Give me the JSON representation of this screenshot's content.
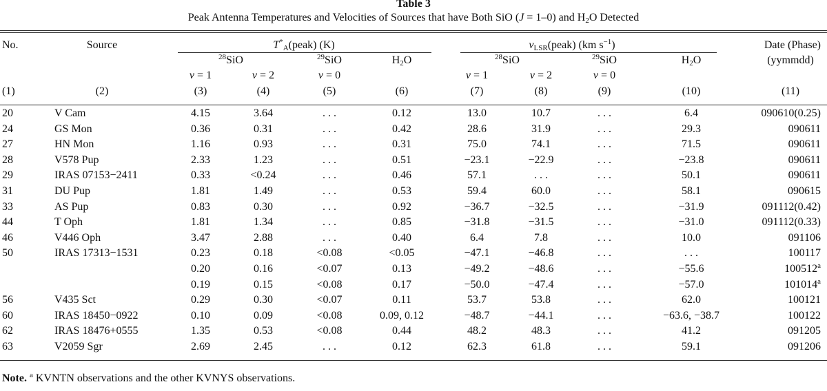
{
  "title": "Table 3",
  "subtitle": "Peak Antenna Temperatures and Velocities of Sources that have Both SiO (J = 1–0) and H2O Detected",
  "headers": {
    "no": "No.",
    "source": "Source",
    "ta_group": "T*A(peak) (K)",
    "vlsr_group": "vLSR(peak) (km s−1)",
    "date": "Date (Phase)",
    "date_fmt": "(yymmdd)",
    "sio28": "28SiO",
    "sio29": "29SiO",
    "h2o": "H2O",
    "v1": "v = 1",
    "v2": "v = 2",
    "v0": "v = 0",
    "colnums": [
      "(1)",
      "(2)",
      "(3)",
      "(4)",
      "(5)",
      "(6)",
      "(7)",
      "(8)",
      "(9)",
      "(10)",
      "(11)"
    ]
  },
  "rows": [
    [
      "20",
      "V Cam",
      "4.15",
      "3.64",
      "...",
      "0.12",
      "13.0",
      "10.7",
      "...",
      "6.4",
      "090610(0.25)"
    ],
    [
      "24",
      "GS Mon",
      "0.36",
      "0.31",
      "...",
      "0.42",
      "28.6",
      "31.9",
      "...",
      "29.3",
      "090611"
    ],
    [
      "27",
      "HN Mon",
      "1.16",
      "0.93",
      "...",
      "0.31",
      "75.0",
      "74.1",
      "...",
      "71.5",
      "090611"
    ],
    [
      "28",
      "V578 Pup",
      "2.33",
      "1.23",
      "...",
      "0.51",
      "−23.1",
      "−22.9",
      "...",
      "−23.8",
      "090611"
    ],
    [
      "29",
      "IRAS 07153−2411",
      "0.33",
      "<0.24",
      "...",
      "0.46",
      "57.1",
      "...",
      "...",
      "50.1",
      "090611"
    ],
    [
      "31",
      "DU Pup",
      "1.81",
      "1.49",
      "...",
      "0.53",
      "59.4",
      "60.0",
      "...",
      "58.1",
      "090615"
    ],
    [
      "33",
      "AS Pup",
      "0.83",
      "0.30",
      "...",
      "0.92",
      "−36.7",
      "−32.5",
      "...",
      "−31.9",
      "091112(0.42)"
    ],
    [
      "44",
      "T Oph",
      "1.81",
      "1.34",
      "...",
      "0.85",
      "−31.8",
      "−31.5",
      "...",
      "−31.0",
      "091112(0.33)"
    ],
    [
      "46",
      "V446 Oph",
      "3.47",
      "2.88",
      "...",
      "0.40",
      "6.4",
      "7.8",
      "...",
      "10.0",
      "091106"
    ],
    [
      "50",
      "IRAS 17313−1531",
      "0.23",
      "0.18",
      "<0.08",
      "<0.05",
      "−47.1",
      "−46.8",
      "...",
      "...",
      "100117"
    ],
    [
      "",
      "",
      "0.20",
      "0.16",
      "<0.07",
      "0.13",
      "−49.2",
      "−48.6",
      "...",
      "−55.6",
      "100512a"
    ],
    [
      "",
      "",
      "0.19",
      "0.15",
      "<0.08",
      "0.17",
      "−50.0",
      "−47.4",
      "...",
      "−57.0",
      "101014a"
    ],
    [
      "56",
      "V435 Sct",
      "0.29",
      "0.30",
      "<0.07",
      "0.11",
      "53.7",
      "53.8",
      "...",
      "62.0",
      "100121"
    ],
    [
      "60",
      "IRAS 18450−0922",
      "0.10",
      "0.09",
      "<0.08",
      "0.09, 0.12",
      "−48.7",
      "−44.1",
      "...",
      "−63.6, −38.7",
      "100122"
    ],
    [
      "62",
      "IRAS 18476+0555",
      "1.35",
      "0.53",
      "<0.08",
      "0.44",
      "48.2",
      "48.3",
      "...",
      "41.2",
      "091205"
    ],
    [
      "63",
      "V2059 Sgr",
      "2.69",
      "2.45",
      "...",
      "0.12",
      "62.3",
      "61.8",
      "...",
      "59.1",
      "091206"
    ]
  ],
  "note": {
    "label": "Note.",
    "marker": "a",
    "text": "KVNTN observations and the other KVNYS observations."
  }
}
